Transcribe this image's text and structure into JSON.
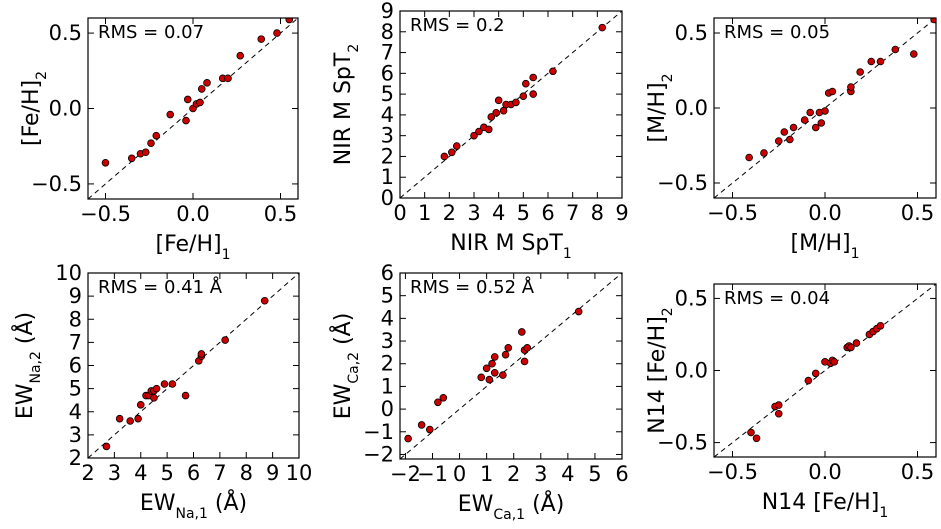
{
  "figure": {
    "point_color": "#cc0000"
  },
  "chart_data": [
    {
      "type": "scatter",
      "panel": "fe-h",
      "xlabel": "[Fe/H]",
      "xsub": "1",
      "ylabel": "[Fe/H]",
      "ysub": "2",
      "annotation": "RMS = 0.07",
      "xlim": [
        -0.6,
        0.6
      ],
      "ylim": [
        -0.6,
        0.6
      ],
      "xticks": [
        -0.5,
        0.0,
        0.5
      ],
      "xticklabels": [
        "−0.5",
        "0.0",
        "0.5"
      ],
      "yticks": [
        -0.5,
        0.0,
        0.5
      ],
      "yticklabels": [
        "−0.5",
        "0.0",
        "0.5"
      ],
      "one_to_one": true,
      "x": [
        -0.5,
        -0.35,
        -0.3,
        -0.27,
        -0.24,
        -0.21,
        -0.13,
        -0.04,
        -0.03,
        0.0,
        0.02,
        0.04,
        0.05,
        0.08,
        0.17,
        0.2,
        0.27,
        0.39,
        0.48,
        0.55
      ],
      "y": [
        -0.36,
        -0.33,
        -0.3,
        -0.29,
        -0.23,
        -0.18,
        -0.04,
        -0.08,
        0.06,
        0.0,
        0.03,
        0.04,
        0.13,
        0.17,
        0.2,
        0.2,
        0.35,
        0.46,
        0.5,
        0.59
      ]
    },
    {
      "type": "scatter",
      "panel": "spt",
      "xlabel": "NIR M SpT",
      "xsub": "1",
      "ylabel": "NIR M SpT",
      "ysub": "2",
      "annotation": "RMS = 0.2",
      "xlim": [
        0,
        9
      ],
      "ylim": [
        0,
        9
      ],
      "xticks": [
        0,
        1,
        2,
        3,
        4,
        5,
        6,
        7,
        8,
        9
      ],
      "xticklabels": [
        "0",
        "1",
        "2",
        "3",
        "4",
        "5",
        "6",
        "7",
        "8",
        "9"
      ],
      "yticks": [
        0,
        1,
        2,
        3,
        4,
        5,
        6,
        7,
        8,
        9
      ],
      "yticklabels": [
        "0",
        "1",
        "2",
        "3",
        "4",
        "5",
        "6",
        "7",
        "8",
        "9"
      ],
      "one_to_one": true,
      "x": [
        1.8,
        2.1,
        2.3,
        3.0,
        3.2,
        3.4,
        3.6,
        3.7,
        3.9,
        4.0,
        4.2,
        4.3,
        4.5,
        4.7,
        5.0,
        5.1,
        5.4,
        5.4,
        6.2,
        8.2
      ],
      "y": [
        2.0,
        2.2,
        2.5,
        3.0,
        3.2,
        3.4,
        3.3,
        3.9,
        4.1,
        4.7,
        4.2,
        4.5,
        4.5,
        4.6,
        4.9,
        5.5,
        5.8,
        5.0,
        6.1,
        8.2
      ]
    },
    {
      "type": "scatter",
      "panel": "m-h",
      "xlabel": "[M/H]",
      "xsub": "1",
      "ylabel": "[M/H]",
      "ysub": "2",
      "annotation": "RMS = 0.05",
      "xlim": [
        -0.6,
        0.6
      ],
      "ylim": [
        -0.6,
        0.6
      ],
      "xticks": [
        -0.5,
        0.0,
        0.5
      ],
      "xticklabels": [
        "−0.5",
        "0.0",
        "0.5"
      ],
      "yticks": [
        -0.5,
        0.0,
        0.5
      ],
      "yticklabels": [
        "−0.5",
        "0.0",
        "0.5"
      ],
      "one_to_one": true,
      "x": [
        -0.41,
        -0.33,
        -0.25,
        -0.22,
        -0.19,
        -0.17,
        -0.11,
        -0.08,
        -0.05,
        -0.03,
        -0.02,
        0.0,
        0.02,
        0.04,
        0.14,
        0.14,
        0.19,
        0.25,
        0.3,
        0.38,
        0.48,
        0.59
      ],
      "y": [
        -0.33,
        -0.3,
        -0.22,
        -0.16,
        -0.21,
        -0.13,
        -0.08,
        -0.03,
        -0.13,
        -0.03,
        -0.1,
        -0.02,
        0.1,
        0.11,
        0.11,
        0.14,
        0.24,
        0.31,
        0.31,
        0.39,
        0.36,
        0.59
      ]
    },
    {
      "type": "scatter",
      "panel": "ew-na",
      "xlabel": "EW",
      "xsub": "Na,1",
      "xunit": " (Å)",
      "ylabel": "EW",
      "ysub": "Na,2",
      "yunit": " (Å)",
      "annotation": "RMS = 0.41 Å",
      "xlim": [
        2,
        10
      ],
      "ylim": [
        2,
        10
      ],
      "xticks": [
        2,
        3,
        4,
        5,
        6,
        7,
        8,
        9,
        10
      ],
      "xticklabels": [
        "2",
        "3",
        "4",
        "5",
        "6",
        "7",
        "8",
        "9",
        "10"
      ],
      "yticks": [
        2,
        3,
        4,
        5,
        6,
        7,
        8,
        9,
        10
      ],
      "yticklabels": [
        "2",
        "3",
        "4",
        "5",
        "6",
        "7",
        "8",
        "9",
        "10"
      ],
      "one_to_one": true,
      "x": [
        2.7,
        3.2,
        3.6,
        3.9,
        4.0,
        4.2,
        4.3,
        4.4,
        4.5,
        4.5,
        4.6,
        4.9,
        5.2,
        5.7,
        6.2,
        6.3,
        6.3,
        7.2,
        8.7
      ],
      "y": [
        2.5,
        3.7,
        3.6,
        3.7,
        4.3,
        4.7,
        4.7,
        4.9,
        4.6,
        4.9,
        5.0,
        5.2,
        5.2,
        4.7,
        6.2,
        6.4,
        6.5,
        7.1,
        8.8
      ]
    },
    {
      "type": "scatter",
      "panel": "ew-ca",
      "xlabel": "EW",
      "xsub": "Ca,1",
      "xunit": " (Å)",
      "ylabel": "EW",
      "ysub": "Ca,2",
      "yunit": " (Å)",
      "annotation": "RMS = 0.52 Å",
      "xlim": [
        -2.2,
        6
      ],
      "ylim": [
        -2.2,
        6
      ],
      "xticks": [
        -2,
        -1,
        0,
        1,
        2,
        3,
        4,
        5,
        6
      ],
      "xticklabels": [
        "−2",
        "−1",
        "0",
        "1",
        "2",
        "3",
        "4",
        "5",
        "6"
      ],
      "yticks": [
        -2,
        -1,
        0,
        1,
        2,
        3,
        4,
        5,
        6
      ],
      "yticklabels": [
        "−2",
        "−1",
        "0",
        "1",
        "2",
        "3",
        "4",
        "5",
        "6"
      ],
      "one_to_one": true,
      "x": [
        -1.9,
        -1.4,
        -1.1,
        -0.8,
        -0.6,
        0.8,
        1.0,
        1.1,
        1.2,
        1.3,
        1.3,
        1.6,
        1.7,
        1.8,
        2.3,
        2.4,
        2.4,
        2.5,
        4.4
      ],
      "y": [
        -1.3,
        -0.7,
        -0.9,
        0.3,
        0.5,
        1.4,
        1.8,
        1.3,
        2.0,
        2.3,
        1.6,
        1.5,
        2.4,
        2.7,
        3.4,
        2.1,
        2.6,
        2.7,
        4.3
      ]
    },
    {
      "type": "scatter",
      "panel": "n14",
      "xlabel": "N14 [Fe/H]",
      "xsub": "1",
      "ylabel": "N14 [Fe/H]",
      "ysub": "2",
      "annotation": "RMS = 0.04",
      "xlim": [
        -0.6,
        0.6
      ],
      "ylim": [
        -0.6,
        0.6
      ],
      "xticks": [
        -0.5,
        0.0,
        0.5
      ],
      "xticklabels": [
        "−0.5",
        "0.0",
        "0.5"
      ],
      "yticks": [
        -0.5,
        0.0,
        0.5
      ],
      "yticklabels": [
        "−0.5",
        "0.0",
        "0.5"
      ],
      "one_to_one": true,
      "x": [
        -0.4,
        -0.37,
        -0.27,
        -0.25,
        -0.25,
        -0.09,
        -0.05,
        0.0,
        0.03,
        0.04,
        0.05,
        0.12,
        0.13,
        0.14,
        0.17,
        0.24,
        0.26,
        0.28,
        0.3
      ],
      "y": [
        -0.43,
        -0.47,
        -0.25,
        -0.24,
        -0.3,
        -0.07,
        -0.02,
        0.06,
        0.05,
        0.07,
        0.06,
        0.16,
        0.17,
        0.16,
        0.19,
        0.25,
        0.27,
        0.29,
        0.31
      ]
    }
  ]
}
